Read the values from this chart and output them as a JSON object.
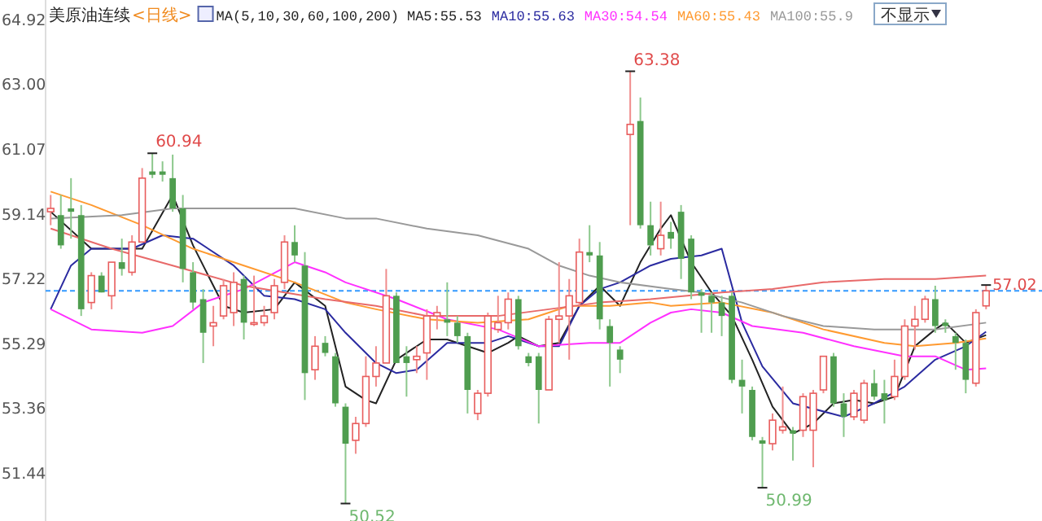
{
  "chart_data": {
    "type": "candlestick",
    "title": "美原油连续",
    "subtitle": "<日线>",
    "legend_title": "MA(5,10,30,60,100,200)",
    "legend": "top",
    "categories": [
      null,
      null,
      null,
      null,
      null,
      null,
      null,
      null,
      null,
      null,
      null,
      null,
      null,
      null,
      null,
      null,
      null,
      null,
      null,
      null,
      null,
      null,
      null,
      null,
      null,
      null,
      null,
      null,
      null,
      null,
      null,
      null,
      null,
      null,
      null,
      null,
      null,
      null,
      null,
      null,
      null,
      null,
      null,
      null,
      null,
      null,
      null,
      null,
      null,
      null,
      null,
      null,
      null,
      null,
      null,
      null,
      null,
      null,
      null,
      null,
      null,
      null,
      null,
      null,
      null,
      null,
      null,
      null,
      null,
      null,
      null,
      null,
      null,
      null,
      null,
      null,
      null,
      null,
      null,
      null,
      null,
      null,
      null,
      null,
      null,
      null,
      null,
      null,
      null,
      null,
      null,
      null,
      null
    ],
    "ohlc": [
      [
        59.2,
        59.7,
        58.8,
        59.3
      ],
      [
        59.1,
        59.7,
        58.1,
        58.2
      ],
      [
        59.3,
        60.2,
        58.4,
        59.2
      ],
      [
        59.1,
        59.4,
        56.1,
        56.3
      ],
      [
        56.5,
        57.4,
        56.3,
        57.3
      ],
      [
        57.3,
        57.4,
        56.8,
        56.8
      ],
      [
        56.7,
        57.7,
        56.3,
        57.7
      ],
      [
        57.7,
        58.4,
        57.3,
        57.5
      ],
      [
        57.4,
        58.5,
        57.3,
        58.3
      ],
      [
        58.3,
        60.5,
        58.3,
        60.2
      ],
      [
        60.4,
        60.94,
        60.2,
        60.3
      ],
      [
        60.4,
        60.7,
        60.1,
        60.3
      ],
      [
        60.2,
        60.9,
        59.2,
        59.3
      ],
      [
        59.3,
        59.7,
        57.1,
        57.5
      ],
      [
        57.4,
        57.7,
        56.3,
        56.5
      ],
      [
        56.6,
        56.9,
        54.7,
        55.6
      ],
      [
        55.8,
        56.4,
        55.2,
        55.9
      ],
      [
        56.1,
        57.2,
        56.0,
        57.0
      ],
      [
        56.2,
        57.4,
        55.8,
        57.1
      ],
      [
        57.2,
        57.3,
        55.4,
        55.9
      ],
      [
        55.85,
        57.3,
        55.8,
        55.9
      ],
      [
        55.9,
        56.4,
        55.8,
        56.1
      ],
      [
        56.2,
        57.2,
        56.0,
        57.0
      ],
      [
        57.1,
        58.5,
        56.9,
        58.3
      ],
      [
        58.3,
        58.8,
        57.7,
        57.9
      ],
      [
        57.6,
        58.0,
        53.6,
        54.4
      ],
      [
        54.5,
        55.5,
        54.2,
        55.2
      ],
      [
        55.3,
        55.5,
        54.9,
        55.0
      ],
      [
        54.9,
        55.0,
        53.4,
        53.5
      ],
      [
        53.4,
        53.5,
        50.52,
        52.3
      ],
      [
        52.4,
        53.1,
        52.0,
        52.9
      ],
      [
        52.9,
        54.9,
        52.8,
        54.3
      ],
      [
        54.3,
        55.2,
        54.0,
        54.7
      ],
      [
        54.7,
        57.5,
        54.7,
        56.7
      ],
      [
        56.7,
        56.8,
        54.7,
        54.7
      ],
      [
        54.9,
        55.2,
        53.7,
        54.7
      ],
      [
        54.8,
        55.2,
        54.4,
        54.9
      ],
      [
        55.0,
        56.3,
        54.2,
        56.1
      ],
      [
        56.1,
        56.4,
        55.7,
        56.2
      ],
      [
        56.0,
        57.1,
        55.5,
        55.9
      ],
      [
        55.9,
        56.1,
        55.3,
        55.5
      ],
      [
        55.5,
        55.6,
        53.2,
        53.9
      ],
      [
        53.2,
        53.9,
        53.0,
        53.8
      ],
      [
        53.8,
        56.2,
        53.7,
        56.1
      ],
      [
        55.7,
        56.7,
        55.6,
        55.9
      ],
      [
        55.9,
        56.8,
        55.7,
        56.6
      ],
      [
        56.6,
        56.7,
        55.1,
        55.2
      ],
      [
        54.9,
        55.0,
        54.6,
        54.7
      ],
      [
        54.9,
        55.0,
        52.9,
        53.9
      ],
      [
        53.9,
        56.1,
        53.9,
        56.0
      ],
      [
        56.0,
        57.7,
        55.3,
        56.1
      ],
      [
        56.1,
        57.2,
        54.8,
        56.7
      ],
      [
        56.5,
        58.4,
        56.4,
        58.0
      ],
      [
        58.0,
        58.8,
        57.7,
        57.9
      ],
      [
        57.9,
        58.3,
        55.7,
        56.0
      ],
      [
        55.8,
        56.0,
        54.0,
        55.3
      ],
      [
        55.1,
        55.2,
        54.4,
        54.8
      ],
      [
        61.5,
        63.38,
        58.8,
        61.8
      ],
      [
        61.9,
        62.6,
        58.7,
        58.8
      ],
      [
        58.8,
        59.5,
        57.9,
        58.2
      ],
      [
        58.1,
        59.5,
        57.9,
        58.5
      ],
      [
        58.6,
        58.9,
        58.1,
        58.4
      ],
      [
        59.2,
        59.4,
        57.2,
        57.8
      ],
      [
        58.4,
        58.5,
        56.6,
        56.8
      ],
      [
        56.8,
        56.9,
        55.6,
        56.7
      ],
      [
        56.7,
        56.8,
        55.6,
        56.5
      ],
      [
        56.5,
        56.7,
        55.5,
        56.1
      ],
      [
        56.7,
        56.8,
        54.1,
        54.2
      ],
      [
        54.2,
        54.8,
        53.2,
        54.0
      ],
      [
        53.9,
        54.0,
        52.4,
        52.5
      ],
      [
        52.4,
        52.5,
        50.99,
        52.3
      ],
      [
        52.3,
        53.2,
        52.1,
        53.0
      ],
      [
        52.7,
        54.0,
        52.6,
        52.8
      ],
      [
        52.7,
        52.8,
        51.8,
        52.6
      ],
      [
        52.7,
        53.8,
        52.5,
        53.7
      ],
      [
        52.7,
        53.9,
        51.6,
        53.8
      ],
      [
        53.9,
        54.9,
        53.8,
        54.9
      ],
      [
        54.9,
        55.0,
        53.4,
        53.5
      ],
      [
        53.5,
        53.8,
        52.5,
        53.1
      ],
      [
        53.1,
        53.9,
        53.0,
        53.8
      ],
      [
        53.0,
        54.2,
        52.9,
        54.1
      ],
      [
        54.1,
        54.5,
        53.6,
        53.7
      ],
      [
        53.8,
        54.2,
        52.9,
        53.6
      ],
      [
        53.7,
        54.8,
        53.6,
        54.3
      ],
      [
        54.3,
        56.0,
        54.2,
        55.8
      ],
      [
        55.8,
        56.4,
        55.1,
        56.0
      ],
      [
        56.0,
        56.7,
        55.9,
        56.6
      ],
      [
        56.6,
        57.0,
        55.6,
        55.8
      ],
      [
        55.9,
        56.0,
        55.6,
        55.8
      ],
      [
        55.5,
        55.6,
        54.5,
        55.3
      ],
      [
        55.3,
        55.4,
        53.8,
        54.2
      ],
      [
        54.1,
        56.3,
        54.0,
        56.2
      ],
      [
        56.4,
        57.02,
        56.3,
        56.85
      ]
    ],
    "series": [
      {
        "type": "line",
        "name": "MA5:55.53",
        "color": "#222222",
        "values": [
          59.2,
          null,
          null,
          null,
          58.1,
          null,
          null,
          null,
          null,
          58.1,
          null,
          null,
          59.7,
          null,
          58.2,
          null,
          null,
          56.4,
          null,
          56.2,
          null,
          null,
          56.3,
          null,
          57.1,
          null,
          null,
          56.4,
          null,
          54.0,
          null,
          53.6,
          53.5,
          null,
          54.8,
          null,
          null,
          55.4,
          null,
          55.4,
          null,
          55.2,
          null,
          55.0,
          null,
          55.3,
          55.5,
          null,
          55.2,
          null,
          55.3,
          null,
          56.4,
          null,
          57.0,
          null,
          56.4,
          null,
          57.7,
          null,
          58.7,
          59.1,
          null,
          57.7,
          null,
          56.8,
          null,
          56.1,
          null,
          54.8,
          null,
          53.4,
          null,
          52.6,
          null,
          52.9,
          null,
          53.5,
          null,
          53.6,
          null,
          53.5,
          null,
          53.7,
          null,
          55.2,
          null,
          55.7,
          55.9,
          null,
          55.3,
          null,
          55.53
        ]
      },
      {
        "type": "line",
        "name": "MA10:55.63",
        "color": "#2a2aa0",
        "values": [
          56.3,
          null,
          57.6,
          null,
          58.1,
          null,
          null,
          null,
          58.1,
          null,
          null,
          58.5,
          null,
          null,
          58.4,
          null,
          null,
          null,
          57.6,
          null,
          null,
          56.7,
          null,
          null,
          56.6,
          null,
          null,
          56.3,
          null,
          55.6,
          null,
          null,
          54.7,
          null,
          54.4,
          null,
          54.5,
          null,
          null,
          55.3,
          null,
          null,
          null,
          55.3,
          null,
          55.5,
          null,
          null,
          55.2,
          null,
          55.2,
          null,
          56.4,
          null,
          56.9,
          null,
          57.1,
          null,
          null,
          57.6,
          null,
          57.8,
          null,
          null,
          57.9,
          null,
          58.1,
          null,
          55.9,
          null,
          54.6,
          null,
          null,
          53.5,
          null,
          null,
          null,
          null,
          53.1,
          null,
          null,
          53.5,
          null,
          null,
          54.0,
          null,
          null,
          54.8,
          null,
          null,
          55.2,
          null,
          55.63
        ]
      },
      {
        "type": "line",
        "name": "MA30:54.54",
        "color": "#ff30ff",
        "values": [
          56.3,
          null,
          null,
          null,
          55.7,
          null,
          null,
          null,
          null,
          55.6,
          null,
          null,
          55.8,
          null,
          null,
          56.5,
          null,
          null,
          null,
          56.9,
          null,
          null,
          null,
          null,
          57.7,
          null,
          null,
          57.4,
          null,
          57.1,
          null,
          null,
          null,
          null,
          56.6,
          null,
          null,
          null,
          null,
          56.0,
          null,
          null,
          null,
          null,
          55.7,
          null,
          null,
          null,
          55.2,
          null,
          null,
          null,
          null,
          55.3,
          null,
          null,
          55.3,
          null,
          null,
          55.9,
          null,
          56.2,
          null,
          56.3,
          null,
          null,
          56.2,
          null,
          null,
          55.8,
          null,
          null,
          null,
          null,
          55.6,
          null,
          null,
          null,
          null,
          55.2,
          null,
          null,
          null,
          null,
          54.9,
          null,
          null,
          54.9,
          null,
          null,
          54.5,
          null,
          54.54
        ]
      },
      {
        "type": "line",
        "name": "MA60:55.43",
        "color": "#ff9a30",
        "values": [
          59.8,
          null,
          null,
          null,
          59.4,
          null,
          null,
          null,
          null,
          58.8,
          null,
          null,
          null,
          null,
          58.1,
          null,
          null,
          null,
          null,
          57.6,
          null,
          null,
          null,
          null,
          57.1,
          null,
          null,
          null,
          null,
          56.5,
          null,
          null,
          56.3,
          null,
          null,
          null,
          null,
          56.0,
          null,
          null,
          null,
          null,
          55.9,
          null,
          null,
          null,
          null,
          56.0,
          null,
          null,
          null,
          56.4,
          null,
          null,
          null,
          56.4,
          null,
          null,
          null,
          56.5,
          null,
          56.4,
          null,
          null,
          null,
          null,
          56.5,
          null,
          null,
          null,
          null,
          56.2,
          null,
          null,
          null,
          null,
          55.7,
          null,
          null,
          null,
          null,
          null,
          55.3,
          null,
          null,
          55.2,
          null,
          null,
          null,
          55.3,
          null,
          null,
          55.43
        ]
      },
      {
        "type": "line",
        "name": "MA100:55.9",
        "color": "#999999",
        "values": [
          59.0,
          null,
          null,
          null,
          null,
          null,
          null,
          59.1,
          null,
          null,
          null,
          null,
          59.3,
          null,
          null,
          null,
          null,
          null,
          null,
          59.3,
          null,
          null,
          null,
          null,
          59.3,
          null,
          null,
          null,
          null,
          59.0,
          null,
          null,
          59.0,
          null,
          null,
          null,
          null,
          58.7,
          null,
          null,
          null,
          null,
          58.5,
          null,
          null,
          null,
          null,
          58.1,
          null,
          null,
          57.6,
          null,
          null,
          57.3,
          null,
          null,
          57.1,
          null,
          null,
          null,
          null,
          56.9,
          null,
          null,
          56.8,
          null,
          null,
          null,
          56.5,
          null,
          null,
          null,
          56.1,
          null,
          null,
          null,
          55.8,
          null,
          null,
          null,
          null,
          55.7,
          null,
          null,
          null,
          null,
          null,
          55.7,
          null,
          null,
          null,
          null,
          55.9
        ]
      },
      {
        "type": "line",
        "color": "#e86a6a",
        "values": [
          58.7,
          null,
          null,
          null,
          null,
          null,
          58.1,
          null,
          null,
          null,
          null,
          null,
          57.6,
          null,
          null,
          null,
          null,
          null,
          null,
          57.0,
          null,
          null,
          null,
          null,
          null,
          null,
          null,
          56.6,
          null,
          null,
          null,
          null,
          56.4,
          null,
          null,
          null,
          null,
          56.1,
          null,
          null,
          null,
          null,
          null,
          null,
          56.1,
          null,
          null,
          null,
          null,
          56.3,
          null,
          null,
          null,
          null,
          56.5,
          null,
          null,
          null,
          null,
          56.6,
          null,
          null,
          null,
          null,
          null,
          null,
          56.8,
          null,
          null,
          null,
          null,
          56.9,
          null,
          null,
          null,
          null,
          57.1,
          null,
          null,
          null,
          null,
          null,
          57.2,
          null,
          null,
          null,
          null,
          57.2,
          null,
          null,
          null,
          null,
          57.3
        ]
      }
    ],
    "ylim": [
      50.0,
      65.5
    ],
    "yticks": [
      64.92,
      {
        "value": 63.0,
        "label": "63.00"
      },
      61.07,
      59.14,
      57.22,
      55.29,
      53.36,
      51.44
    ],
    "tick_labels": "y",
    "grid": false,
    "ref_lines": [
      {
        "axis": "y",
        "value": 56.85,
        "color": "#3399ff",
        "line_style": "dashed"
      }
    ],
    "annotations": [
      "60.94",
      "63.38",
      "50.52",
      "50.99",
      "57.02",
      "不显示"
    ]
  }
}
